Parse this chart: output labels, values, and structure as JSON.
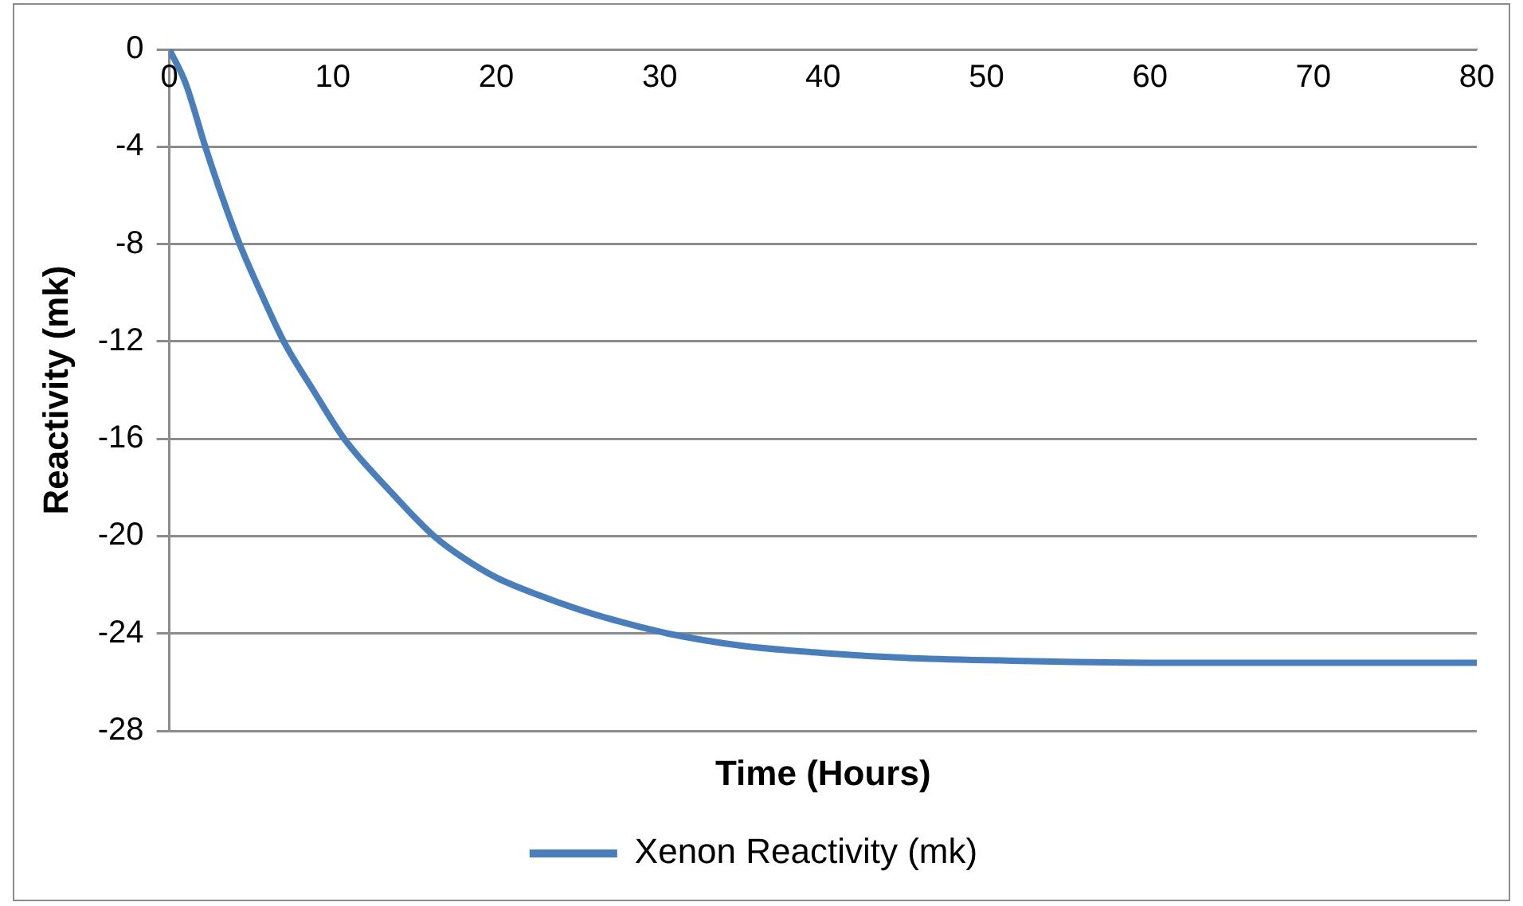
{
  "chart_data": {
    "type": "line",
    "xlabel": "Time (Hours)",
    "ylabel": "Reactivity (mk)",
    "xlim": [
      0,
      80
    ],
    "xticks": [
      0,
      10,
      20,
      30,
      40,
      50,
      60,
      70,
      80
    ],
    "ylim": [
      -28,
      0
    ],
    "yticks": [
      0,
      -4,
      -8,
      -12,
      -16,
      -20,
      -24,
      -28
    ],
    "grid": "y",
    "legend": "bottom",
    "marker": "none",
    "line_style": "solid",
    "series": [
      {
        "name": "Xenon Reactivity (mk)",
        "color": "#4a7ebb",
        "x": [
          0,
          1,
          2.2,
          3.2,
          4.3,
          5.6,
          7,
          8.8,
          10.7,
          13.3,
          16.2,
          18,
          20,
          22.5,
          25,
          27.5,
          30.5,
          35,
          40,
          45,
          50,
          60,
          70,
          80
        ],
        "values": [
          0,
          -1.4,
          -4,
          -6,
          -8,
          -10,
          -12,
          -14,
          -16,
          -18,
          -20,
          -20.9,
          -21.7,
          -22.4,
          -23,
          -23.5,
          -24,
          -24.5,
          -24.8,
          -25,
          -25.1,
          -25.2,
          -25.2,
          -25.2
        ]
      }
    ]
  }
}
